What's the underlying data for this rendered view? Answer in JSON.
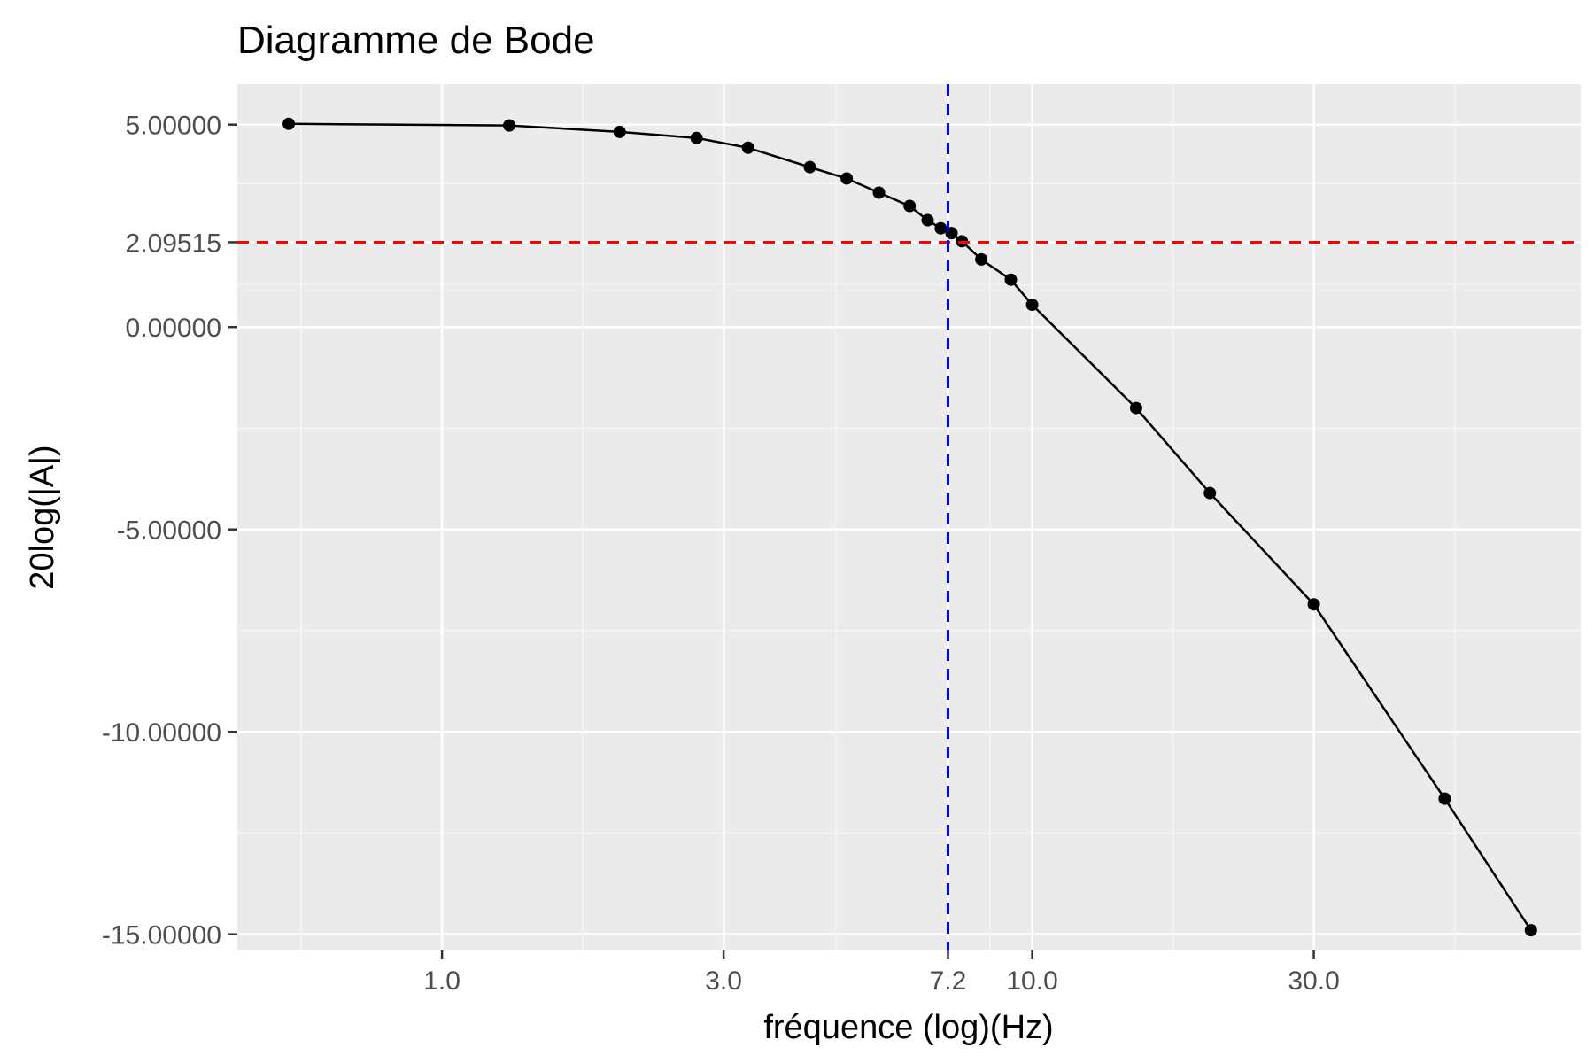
{
  "chart_data": {
    "type": "line",
    "title": "Diagramme de Bode",
    "xlabel": "fréquence (log)(Hz)",
    "ylabel": "20log(|A|)",
    "x_scale": "log10",
    "xlim": [
      0.45,
      85
    ],
    "ylim": [
      -15.4,
      6.0
    ],
    "x_ticks": [
      {
        "value": 1.0,
        "label": "1.0"
      },
      {
        "value": 3.0,
        "label": "3.0"
      },
      {
        "value": 7.2,
        "label": "7.2"
      },
      {
        "value": 10.0,
        "label": "10.0"
      },
      {
        "value": 30.0,
        "label": "30.0"
      }
    ],
    "y_ticks": [
      {
        "value": 5.0,
        "label": "5.00000"
      },
      {
        "value": 2.09515,
        "label": "2.09515"
      },
      {
        "value": 0.0,
        "label": "0.00000"
      },
      {
        "value": -5.0,
        "label": "-5.00000"
      },
      {
        "value": -10.0,
        "label": "-10.00000"
      },
      {
        "value": -15.0,
        "label": "-15.00000"
      }
    ],
    "grid": true,
    "series": [
      {
        "x": [
          0.55,
          1.3,
          2.0,
          2.7,
          3.3,
          4.2,
          4.85,
          5.5,
          6.2,
          6.65,
          7.0,
          7.3,
          7.6,
          8.2,
          9.2,
          10.0,
          15.0,
          20.0,
          30.0,
          50.0,
          70.0
        ],
        "y": [
          5.02,
          4.98,
          4.82,
          4.67,
          4.43,
          3.95,
          3.67,
          3.32,
          2.99,
          2.64,
          2.44,
          2.32,
          2.12,
          1.67,
          1.17,
          0.55,
          -2.0,
          -4.1,
          -6.85,
          -11.65,
          -14.9
        ],
        "color": "#000000"
      }
    ],
    "reference_lines": [
      {
        "orientation": "horizontal",
        "value": 2.09515,
        "color": "#ff0000",
        "style": "dashed"
      },
      {
        "orientation": "vertical",
        "value": 7.2,
        "color": "#0000ff",
        "style": "dashed"
      }
    ],
    "colors": {
      "panel_background": "#ebebeb",
      "grid_major": "#ffffff",
      "grid_minor": "#f5f5f5"
    }
  }
}
